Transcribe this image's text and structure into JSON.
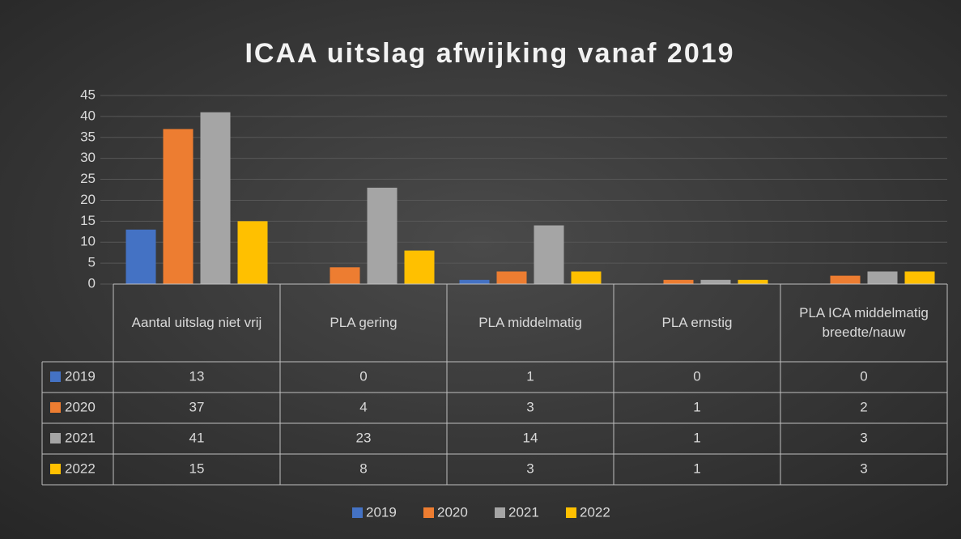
{
  "chart_data": {
    "type": "bar",
    "title": "ICAA uitslag afwijking vanaf 2019",
    "categories": [
      "Aantal uitslag niet vrij",
      "PLA gering",
      "PLA middelmatig",
      "PLA ernstig",
      "PLA ICA middelmatig breedte/nauw"
    ],
    "series": [
      {
        "name": "2019",
        "color": "#4472c4",
        "values": [
          13,
          0,
          1,
          0,
          0
        ]
      },
      {
        "name": "2020",
        "color": "#ed7d31",
        "values": [
          37,
          4,
          3,
          1,
          2
        ]
      },
      {
        "name": "2021",
        "color": "#a5a5a5",
        "values": [
          41,
          23,
          14,
          1,
          3
        ]
      },
      {
        "name": "2022",
        "color": "#ffc000",
        "values": [
          15,
          8,
          3,
          1,
          3
        ]
      }
    ],
    "ylim": [
      0,
      45
    ],
    "yticks": [
      0,
      5,
      10,
      15,
      20,
      25,
      30,
      35,
      40,
      45
    ],
    "grid": true,
    "legend": "bottom",
    "data_table": true
  }
}
